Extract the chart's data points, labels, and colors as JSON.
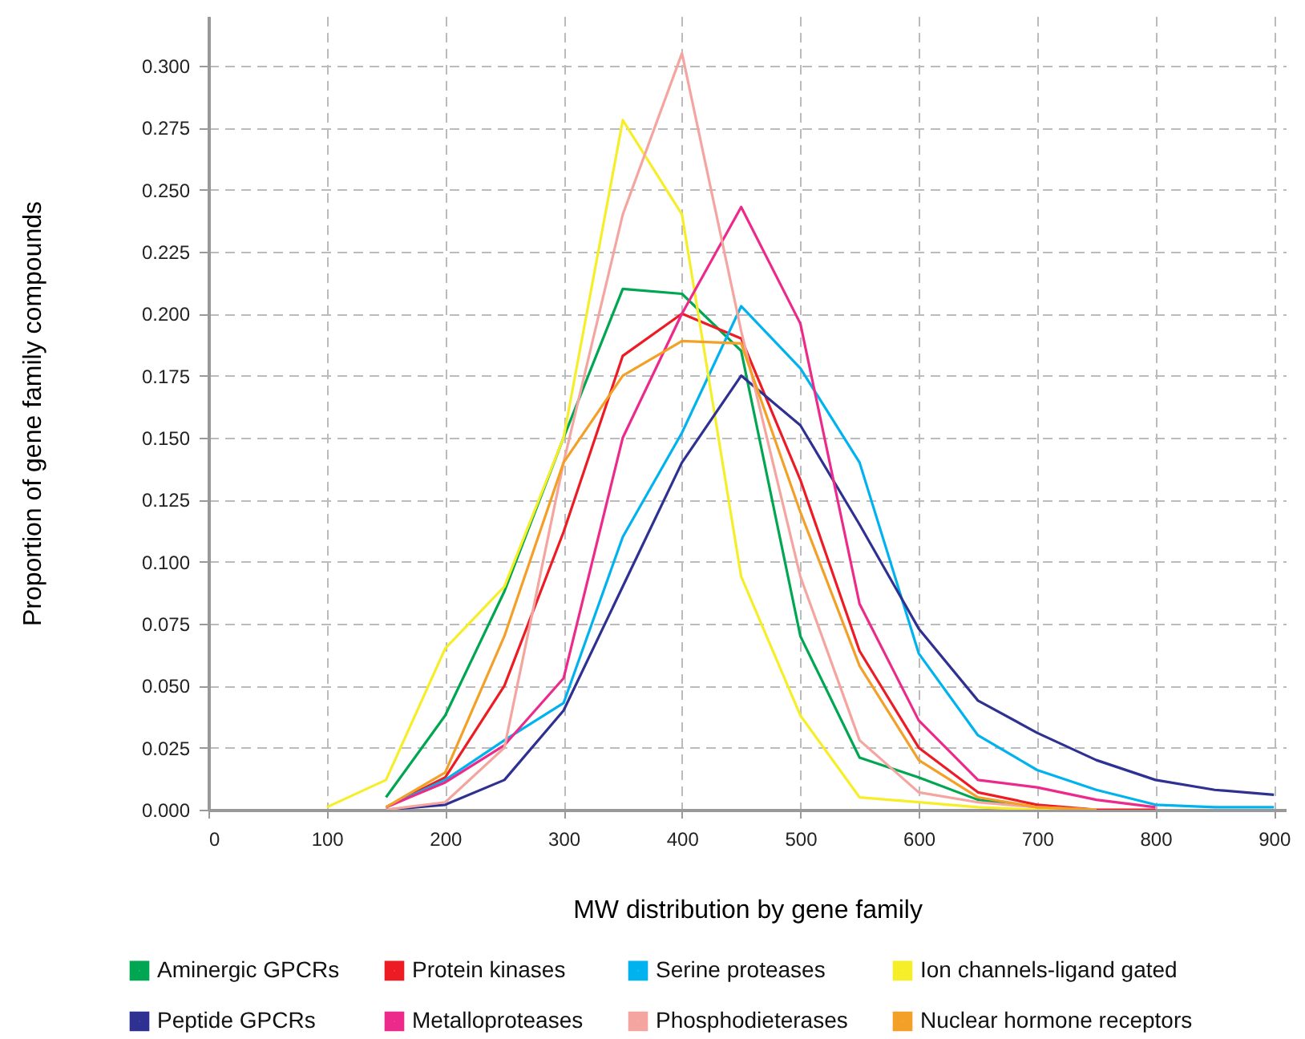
{
  "chart_data": {
    "type": "line",
    "xlabel": "MW distribution by gene family",
    "ylabel": "Proportion of gene family compounds",
    "x": [
      100,
      150,
      200,
      250,
      300,
      350,
      400,
      450,
      500,
      550,
      600,
      650,
      700,
      750,
      800,
      850,
      900
    ],
    "series": [
      {
        "name": "Aminergic GPCRs",
        "color": "#00a651",
        "values": [
          null,
          0.005,
          0.038,
          0.088,
          0.15,
          0.21,
          0.208,
          0.185,
          0.07,
          0.021,
          0.013,
          0.004,
          0.001,
          0,
          null,
          null,
          null
        ]
      },
      {
        "name": "Protein kinases",
        "color": "#ed1c24",
        "values": [
          null,
          0.001,
          0.013,
          0.05,
          0.112,
          0.183,
          0.2,
          0.19,
          0.133,
          0.064,
          0.025,
          0.007,
          0.002,
          0,
          0,
          null,
          null
        ]
      },
      {
        "name": "Serine proteases",
        "color": "#00b3ef",
        "values": [
          null,
          0.001,
          0.012,
          0.028,
          0.043,
          0.11,
          0.152,
          0.203,
          0.178,
          0.14,
          0.063,
          0.03,
          0.016,
          0.008,
          0.002,
          0.001,
          0.001
        ]
      },
      {
        "name": "Ion channels-ligand gated",
        "color": "#f7ee2a",
        "values": [
          0.001,
          0.012,
          0.065,
          0.09,
          0.15,
          0.278,
          0.24,
          0.094,
          0.038,
          0.005,
          0.003,
          0.001,
          0,
          0,
          null,
          null,
          null
        ]
      },
      {
        "name": "Peptide GPCRs",
        "color": "#2e3192",
        "values": [
          null,
          0,
          0.002,
          0.012,
          0.04,
          0.09,
          0.14,
          0.175,
          0.155,
          0.115,
          0.073,
          0.044,
          0.031,
          0.02,
          0.012,
          0.008,
          0.006
        ]
      },
      {
        "name": "Metalloproteases",
        "color": "#ec2a8c",
        "values": [
          null,
          0.001,
          0.011,
          0.026,
          0.053,
          0.15,
          0.2,
          0.243,
          0.196,
          0.083,
          0.036,
          0.012,
          0.009,
          0.004,
          0.001,
          null,
          null
        ]
      },
      {
        "name": "Phosphodieterases",
        "color": "#f4a5a0",
        "values": [
          null,
          0,
          0.003,
          0.025,
          0.14,
          0.24,
          0.305,
          0.193,
          0.094,
          0.028,
          0.007,
          0.003,
          0.001,
          0,
          null,
          null,
          null
        ]
      },
      {
        "name": "Nuclear hormone receptors",
        "color": "#f3a028",
        "values": [
          null,
          0.001,
          0.015,
          0.07,
          0.14,
          0.175,
          0.189,
          0.188,
          0.12,
          0.058,
          0.02,
          0.005,
          0.001,
          0,
          null,
          null,
          null
        ]
      }
    ],
    "xlim": [
      0,
      910
    ],
    "xticks": [
      0,
      100,
      200,
      300,
      400,
      500,
      600,
      700,
      800,
      900
    ],
    "ylim": [
      0,
      0.32
    ],
    "yticks": [
      {
        "value": 0,
        "label": "0.000"
      },
      {
        "value": 0.025,
        "label": "0.025"
      },
      {
        "value": 0.05,
        "label": "0.050"
      },
      {
        "value": 0.075,
        "label": "0.075"
      },
      {
        "value": 0.1,
        "label": "0.100"
      },
      {
        "value": 0.125,
        "label": "0.125"
      },
      {
        "value": 0.15,
        "label": "0.150"
      },
      {
        "value": 0.175,
        "label": "0.175"
      },
      {
        "value": 0.2,
        "label": "0.200"
      },
      {
        "value": 0.225,
        "label": "0.225"
      },
      {
        "value": 0.25,
        "label": "0.250"
      },
      {
        "value": 0.275,
        "label": "0.275"
      },
      {
        "value": 0.3,
        "label": "0.300"
      }
    ],
    "grid": true,
    "legend": "bottom"
  }
}
